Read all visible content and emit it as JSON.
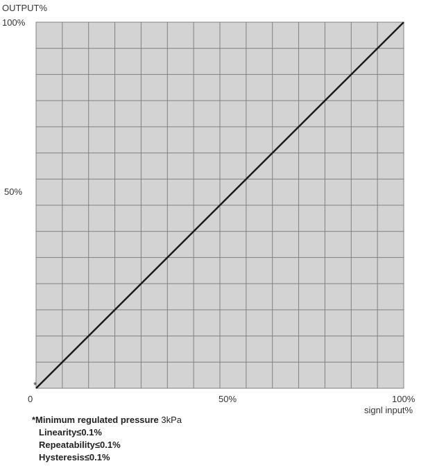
{
  "chart_data": {
    "type": "line",
    "ylabel": "OUTPUT%",
    "xlabel": "signl input%",
    "xlim": [
      0,
      100
    ],
    "ylim": [
      0,
      100
    ],
    "grid": true,
    "x_ticks": [
      "0",
      "50%",
      "100%"
    ],
    "y_ticks": [
      "100%",
      "50%"
    ],
    "series": [
      {
        "x": [
          0,
          100
        ],
        "y": [
          0,
          100
        ]
      }
    ],
    "start_marker": "*",
    "colors": {
      "plot_bg": "#d3d3d3",
      "grid": "#808080",
      "line": "#1a1a1a"
    }
  },
  "notes": {
    "title_bold": "*Minimum regulated pressure",
    "title_value": " 3kPa",
    "lines": [
      "Linearity≤0.1%",
      "Repeatability≤0.1%",
      "Hysteresis≤0.1%"
    ]
  }
}
